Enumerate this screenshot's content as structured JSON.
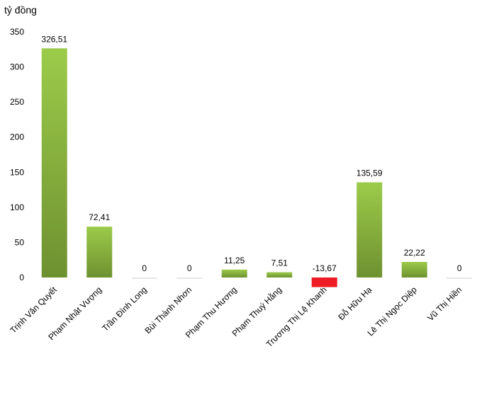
{
  "chart_data": {
    "type": "bar",
    "ylabel": "tỷ đồng",
    "ylim": [
      0,
      350
    ],
    "yticks": [
      0,
      50,
      100,
      150,
      200,
      250,
      300,
      350
    ],
    "grid": false,
    "categories": [
      "Trịnh Văn Quyết",
      "Phạm Nhật Vượng",
      "Trần Đình Long",
      "Bùi Thành Nhơn",
      "Phạm Thu Hương",
      "Phạm Thuý Hằng",
      "Trương Thị Lệ Khanh",
      "Đỗ Hữu Hạ",
      "Lê Thị Ngọc Diệp",
      "Vũ Thị Hiền"
    ],
    "values": [
      326.51,
      72.41,
      0,
      0,
      11.25,
      7.51,
      -13.67,
      135.59,
      22.22,
      0
    ],
    "data_labels": [
      "326,51",
      "72,41",
      "0",
      "0",
      "11,25",
      "7,51",
      "-13,67",
      "135,59",
      "22,22",
      "0"
    ],
    "colors": {
      "positive_top": "#9ccb4a",
      "positive_bottom": "#6e9130",
      "negative": "#ee1c25",
      "zero_bar": "#e6e6e6"
    }
  }
}
